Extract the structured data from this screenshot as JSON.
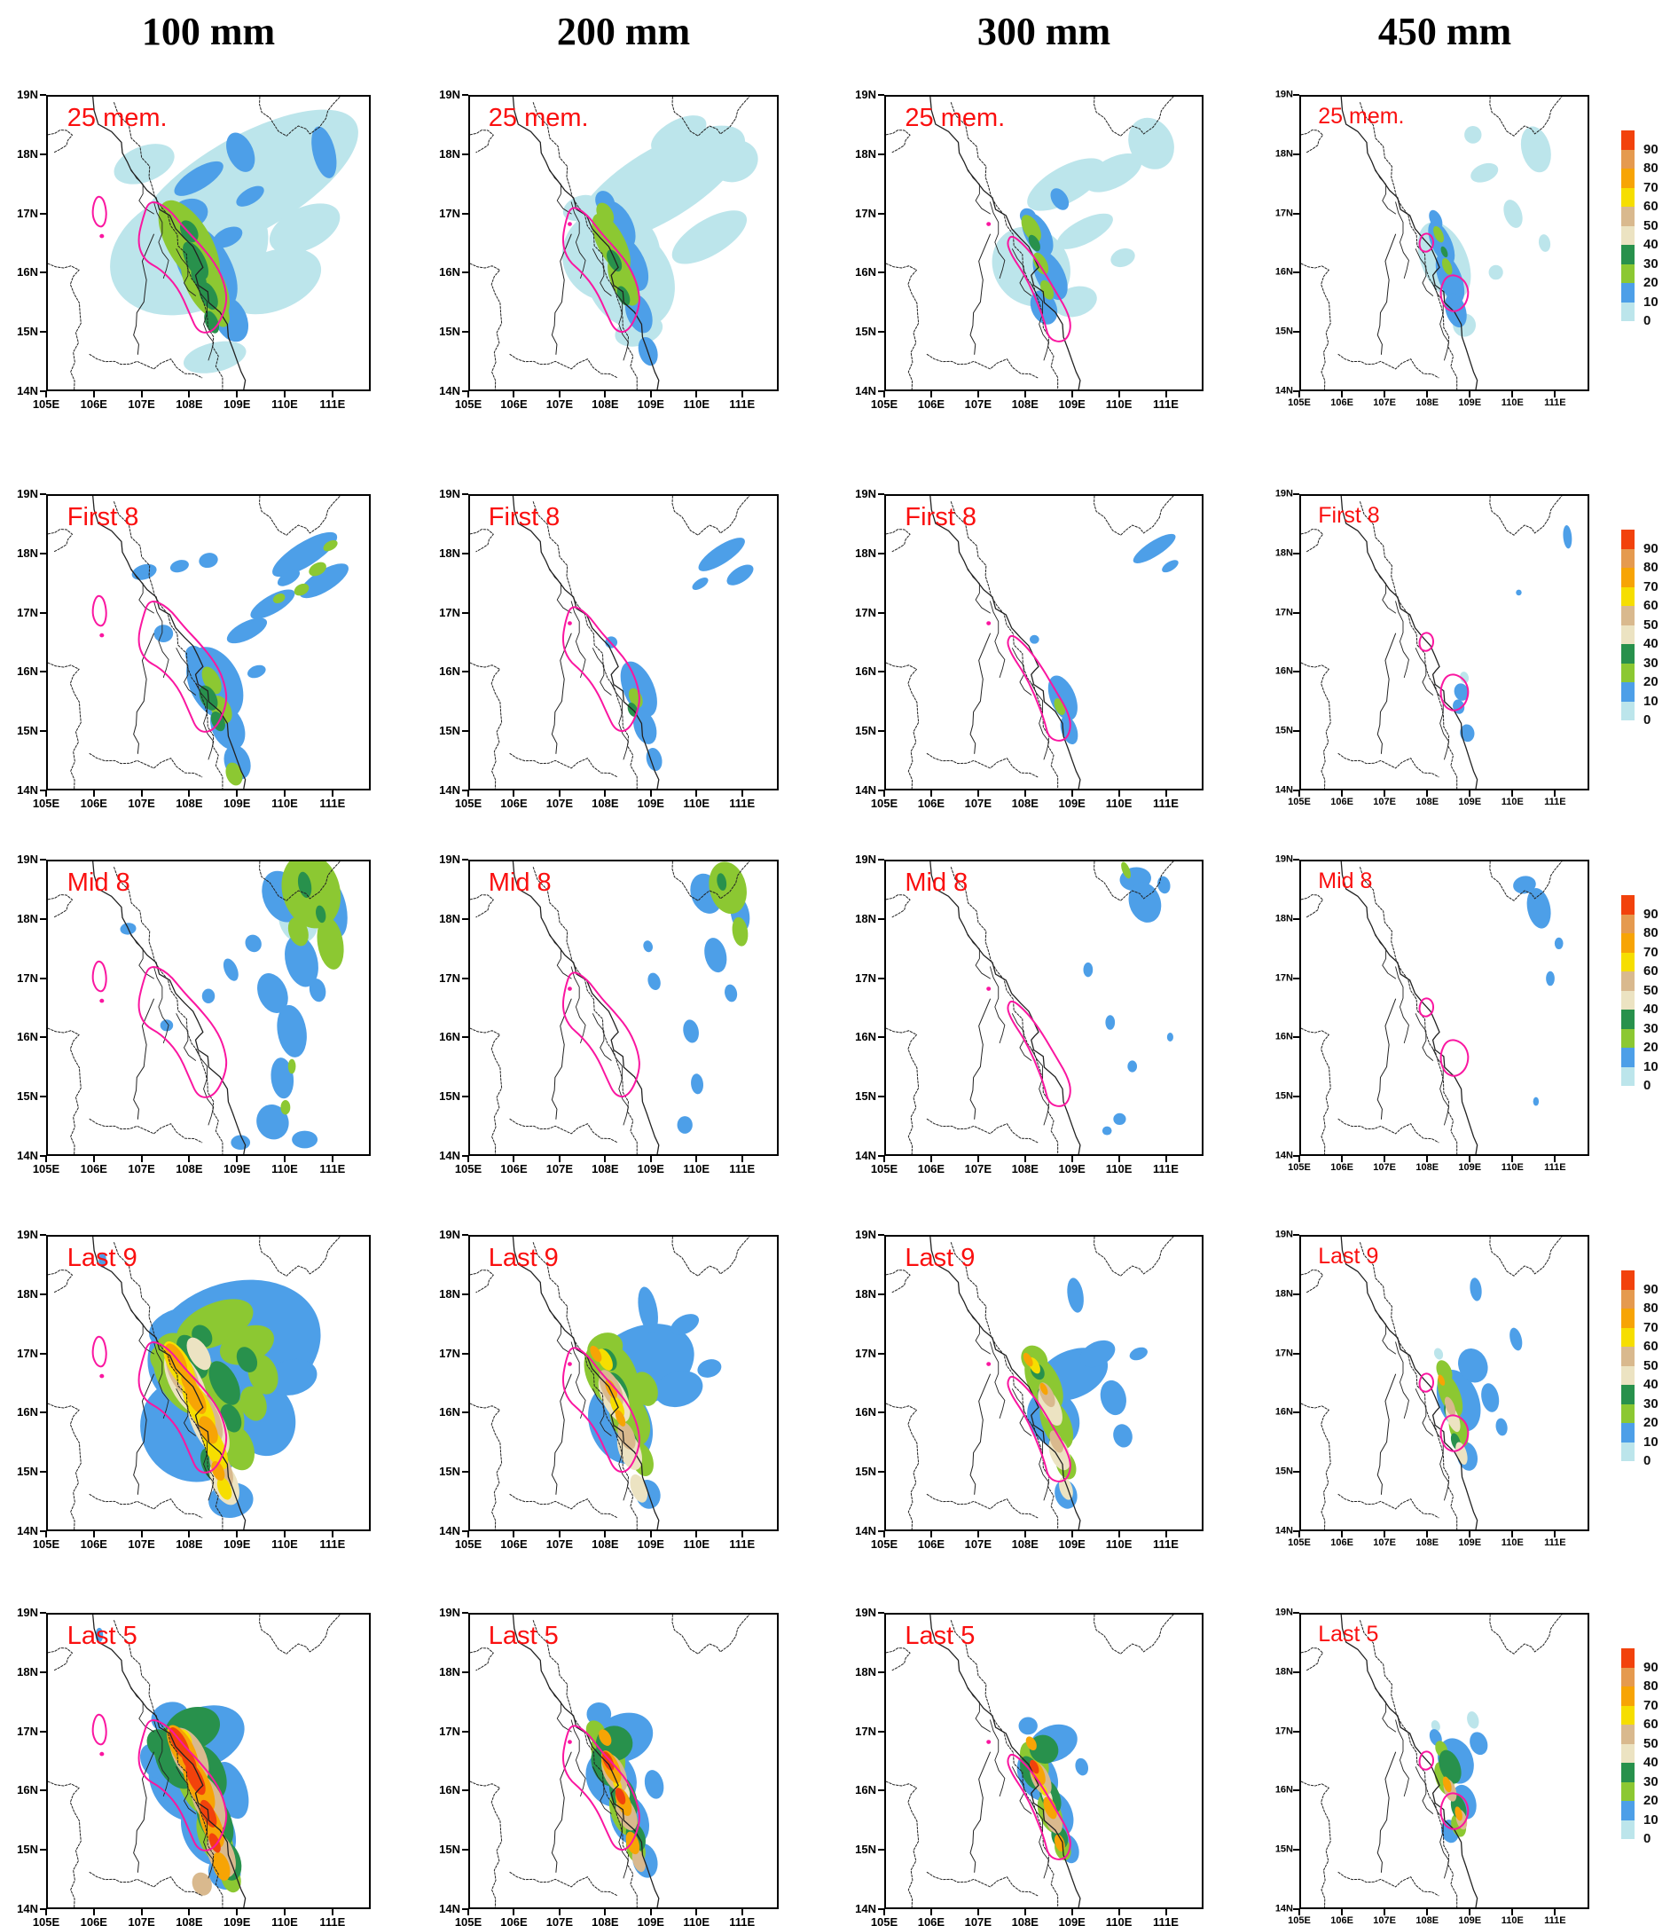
{
  "figure": {
    "column_headers": [
      {
        "label": "100 mm"
      },
      {
        "label": "200 mm"
      },
      {
        "label": "300 mm"
      },
      {
        "label": "450 mm"
      }
    ],
    "row_labels": [
      {
        "label": "25 mem."
      },
      {
        "label": "First 8"
      },
      {
        "label": "Mid 8"
      },
      {
        "label": "Last 9"
      },
      {
        "label": "Last 5"
      }
    ],
    "axis": {
      "lat_ticks": [
        "19N",
        "18N",
        "17N",
        "16N",
        "15N",
        "14N"
      ],
      "lon_ticks": [
        "105E",
        "106E",
        "107E",
        "108E",
        "109E",
        "110E",
        "111E"
      ]
    },
    "colorbar": {
      "count_visible": 5,
      "tick_labels": [
        "90",
        "80",
        "70",
        "60",
        "50",
        "40",
        "30",
        "20",
        "10",
        "0"
      ],
      "segment_colors_top_to_bottom": [
        "#f2420c",
        "#e59a4f",
        "#f7a405",
        "#f6de00",
        "#d9b98e",
        "#ece3c2",
        "#28914c",
        "#8cc832",
        "#4d9fe8",
        "#bce5eb"
      ]
    },
    "colors": {
      "row_label_red": "#fa0f0f",
      "contour_magenta": "#fa16a0",
      "map_line": "#222222"
    },
    "panels": [
      {
        "row": "25 mem.",
        "column": "100 mm"
      },
      {
        "row": "25 mem.",
        "column": "200 mm"
      },
      {
        "row": "25 mem.",
        "column": "300 mm"
      },
      {
        "row": "25 mem.",
        "column": "450 mm"
      },
      {
        "row": "First 8",
        "column": "100 mm"
      },
      {
        "row": "First 8",
        "column": "200 mm"
      },
      {
        "row": "First 8",
        "column": "300 mm"
      },
      {
        "row": "First 8",
        "column": "450 mm"
      },
      {
        "row": "Mid 8",
        "column": "100 mm"
      },
      {
        "row": "Mid 8",
        "column": "200 mm"
      },
      {
        "row": "Mid 8",
        "column": "300 mm"
      },
      {
        "row": "Mid 8",
        "column": "450 mm"
      },
      {
        "row": "Last 9",
        "column": "100 mm"
      },
      {
        "row": "Last 9",
        "column": "200 mm"
      },
      {
        "row": "Last 9",
        "column": "300 mm"
      },
      {
        "row": "Last 9",
        "column": "450 mm"
      },
      {
        "row": "Last 5",
        "column": "100 mm"
      },
      {
        "row": "Last 5",
        "column": "200 mm"
      },
      {
        "row": "Last 5",
        "column": "300 mm"
      },
      {
        "row": "Last 5",
        "column": "450 mm"
      }
    ]
  }
}
